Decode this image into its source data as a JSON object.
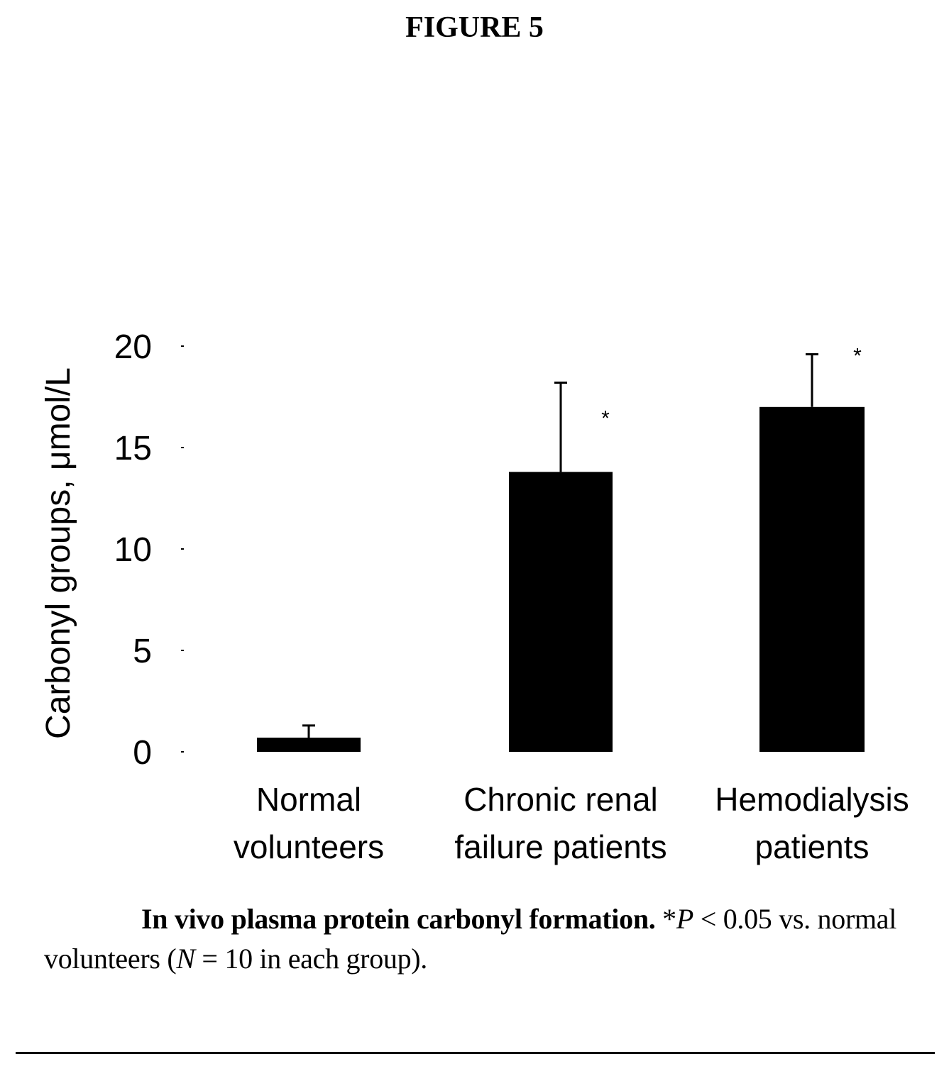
{
  "figure_title": "FIGURE 5",
  "chart_data": {
    "type": "bar",
    "title": "",
    "xlabel": "",
    "ylabel": "Carbonyl groups, μmol/L",
    "ylim": [
      0,
      20
    ],
    "yticks": [
      "0",
      "5",
      "10",
      "15",
      "20"
    ],
    "categories": [
      [
        "Normal",
        "volunteers"
      ],
      [
        "Chronic renal",
        "failure patients"
      ],
      [
        "Hemodialysis",
        "patients"
      ]
    ],
    "values": [
      0.7,
      13.8,
      17.0
    ],
    "error_upper": [
      1.3,
      18.2,
      19.6
    ],
    "significance": [
      "",
      "*",
      "*"
    ],
    "bar_color": "#000000",
    "grid": false,
    "legend": "none"
  },
  "caption": {
    "lead": "In vivo plasma protein carbonyl formation.",
    "p_prefix": " *",
    "p_symbol": "P",
    "p_rest": " < 0.05 vs. normal volunteers (",
    "n_symbol": "N",
    "n_rest": " = 10 in each group)."
  }
}
